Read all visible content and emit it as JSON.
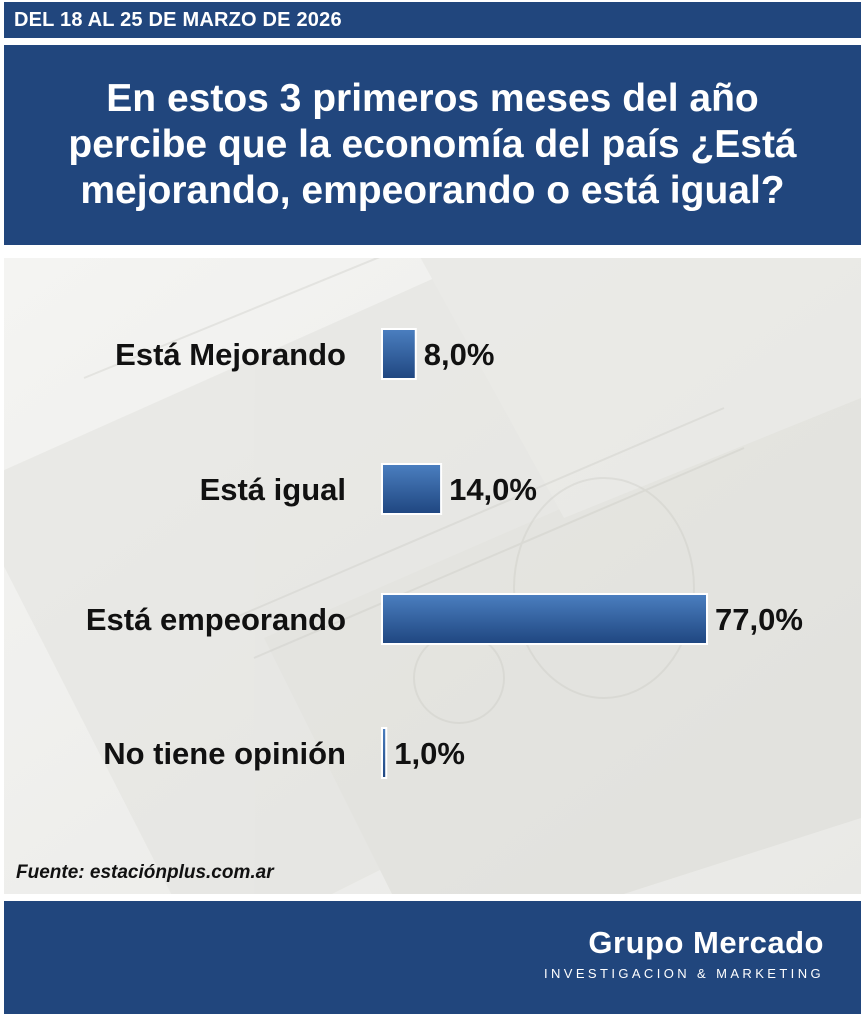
{
  "header": {
    "date_range": "DEL 18 AL 25 DE MARZO DE 2026",
    "question": "En estos 3 primeros meses del año percibe que la economía del país ¿Está mejorando, empeorando o está igual?"
  },
  "chart_data": {
    "type": "bar",
    "orientation": "horizontal",
    "categories": [
      "Está Mejorando",
      "Está igual",
      "Está empeorando",
      "No tiene opinión"
    ],
    "values": [
      8.0,
      14.0,
      77.0,
      1.0
    ],
    "value_labels": [
      "8,0%",
      "14,0%",
      "77,0%",
      "1,0%"
    ],
    "unit": "%",
    "bar_color": "#2e5d9a",
    "title": "",
    "xlabel": "",
    "ylabel": "",
    "grid": false,
    "legend": "none"
  },
  "source": "Fuente: estaciónplus.com.ar",
  "footer": {
    "brand": "Grupo Mercado",
    "tagline": "INVESTIGACION & MARKETING"
  },
  "colors": {
    "primary": "#21467d",
    "bar_top": "#4b7fc0",
    "bar_bottom": "#1f4680",
    "text": "#111111"
  }
}
